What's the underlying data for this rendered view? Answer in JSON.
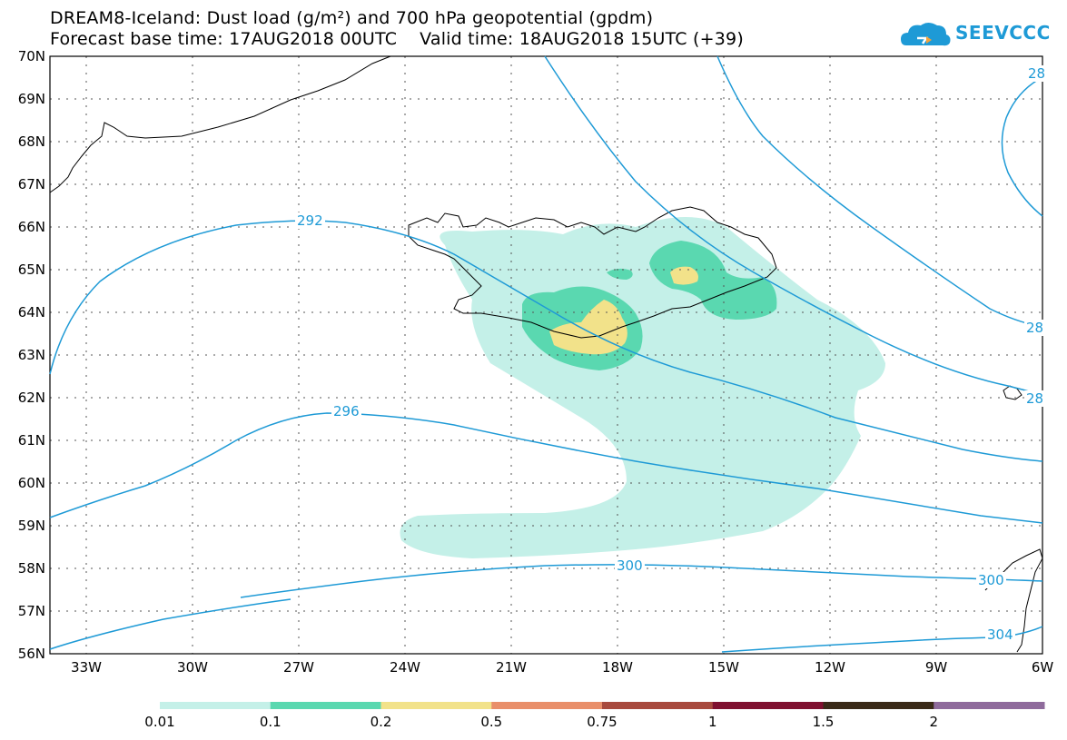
{
  "title": {
    "line1": "DREAM8-Iceland: Dust load (g/m²) and 700 hPa geopotential (gpdm)",
    "line2": "Forecast base time: 17AUG2018 00UTC    Valid time: 18AUG2018 15UTC (+39)"
  },
  "logo": {
    "text": "SEEVCCC",
    "color": "#1e9ad6"
  },
  "lat_labels": [
    "70N",
    "69N",
    "68N",
    "67N",
    "66N",
    "65N",
    "64N",
    "63N",
    "62N",
    "61N",
    "60N",
    "59N",
    "58N",
    "57N",
    "56N"
  ],
  "lon_labels": [
    "33W",
    "30W",
    "27W",
    "24W",
    "21W",
    "18W",
    "15W",
    "12W",
    "9W",
    "6W"
  ],
  "contours": {
    "color": "#1e9ad6",
    "labels": [
      "292",
      "296",
      "300",
      "300",
      "304",
      "28",
      "28",
      "28"
    ]
  },
  "colorbar": {
    "ticks": [
      "0.01",
      "0.1",
      "0.2",
      "0.5",
      "0.75",
      "1",
      "1.5",
      "2"
    ],
    "colors": [
      "#c4f0e8",
      "#5ad8b0",
      "#f2e28a",
      "#e98f6a",
      "#a84a3e",
      "#7f1030",
      "#3a2a18",
      "#8f6b9c"
    ]
  },
  "dust_colors": {
    "low": "#c4f0e8",
    "mid": "#5ad8b0",
    "high": "#f2e28a"
  }
}
